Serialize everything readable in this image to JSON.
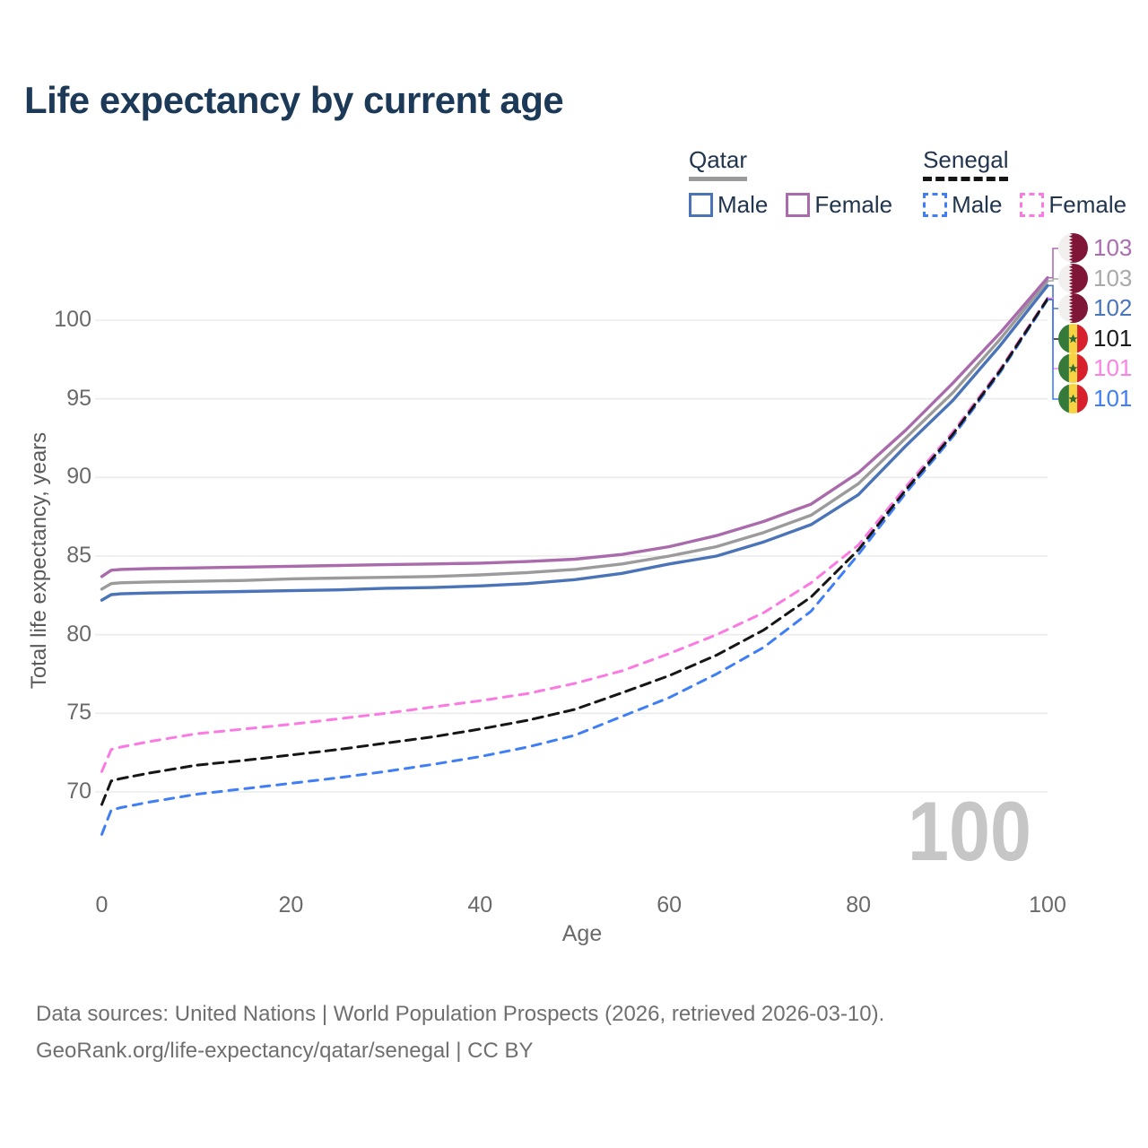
{
  "title": "Life expectancy by current age",
  "legend": {
    "qatar": {
      "title": "Qatar",
      "male_label": "Male",
      "female_label": "Female"
    },
    "senegal": {
      "title": "Senegal",
      "male_label": "Male",
      "female_label": "Female"
    }
  },
  "watermark": "100",
  "chart_data": {
    "type": "line",
    "title": "Life expectancy by current age",
    "xlabel": "Age",
    "ylabel": "Total life expectancy, years",
    "xlim": [
      0,
      100
    ],
    "ylim": [
      67,
      103.5
    ],
    "x_ticks": [
      0,
      20,
      40,
      60,
      80,
      100
    ],
    "y_ticks": [
      70,
      75,
      80,
      85,
      90,
      95,
      100
    ],
    "grid": "horizontal-only",
    "legend_position": "top-right",
    "x": [
      0,
      1,
      2,
      5,
      10,
      15,
      20,
      25,
      30,
      35,
      40,
      45,
      50,
      55,
      60,
      65,
      70,
      75,
      80,
      85,
      90,
      95,
      100
    ],
    "series": [
      {
        "name": "Qatar Female",
        "country": "Qatar",
        "sex": "Female",
        "style": "solid",
        "color": "#a96bab",
        "end_label": "103",
        "end_label_color": "#ab6cb0",
        "flag": "qatar",
        "values": [
          83.7,
          84.1,
          84.15,
          84.2,
          84.25,
          84.3,
          84.35,
          84.4,
          84.45,
          84.5,
          84.55,
          84.65,
          84.8,
          85.1,
          85.6,
          86.3,
          87.2,
          88.3,
          90.3,
          93.0,
          96.0,
          99.2,
          102.7
        ]
      },
      {
        "name": "Qatar Both sexes",
        "country": "Qatar",
        "sex": "Both",
        "style": "solid",
        "color": "#9b9b9b",
        "end_label": "103",
        "end_label_color": "#a9a9a9",
        "flag": "qatar",
        "values": [
          82.9,
          83.25,
          83.3,
          83.35,
          83.4,
          83.45,
          83.55,
          83.6,
          83.65,
          83.7,
          83.8,
          83.95,
          84.15,
          84.5,
          85.0,
          85.6,
          86.5,
          87.6,
          89.6,
          92.5,
          95.4,
          98.8,
          102.5
        ]
      },
      {
        "name": "Qatar Male",
        "country": "Qatar",
        "sex": "Male",
        "style": "solid",
        "color": "#4a73b8",
        "end_label": "102",
        "end_label_color": "#4a74bb",
        "flag": "qatar",
        "values": [
          82.2,
          82.55,
          82.6,
          82.65,
          82.7,
          82.75,
          82.8,
          82.85,
          82.95,
          83.0,
          83.1,
          83.25,
          83.5,
          83.9,
          84.5,
          85.0,
          85.9,
          87.0,
          88.9,
          92.0,
          94.9,
          98.4,
          102.2
        ]
      },
      {
        "name": "Senegal Both sexes",
        "country": "Senegal",
        "sex": "Both",
        "style": "dashed",
        "color": "#161616",
        "end_label": "101",
        "end_label_color": "#1a1a1a",
        "flag": "senegal",
        "values": [
          69.2,
          70.7,
          70.85,
          71.2,
          71.7,
          72.0,
          72.35,
          72.7,
          73.1,
          73.5,
          74.0,
          74.55,
          75.25,
          76.3,
          77.4,
          78.7,
          80.3,
          82.4,
          85.4,
          89.2,
          92.75,
          96.8,
          101.35
        ]
      },
      {
        "name": "Senegal Female",
        "country": "Senegal",
        "sex": "Female",
        "style": "dashed",
        "color": "#fb7ae2",
        "end_label": "101",
        "end_label_color": "#fc82e6",
        "flag": "senegal",
        "values": [
          71.3,
          72.7,
          72.85,
          73.2,
          73.7,
          74.0,
          74.3,
          74.65,
          75.0,
          75.4,
          75.8,
          76.25,
          76.9,
          77.7,
          78.8,
          80.0,
          81.4,
          83.3,
          85.7,
          89.4,
          92.9,
          96.9,
          101.4
        ]
      },
      {
        "name": "Senegal Male",
        "country": "Senegal",
        "sex": "Male",
        "style": "dashed",
        "color": "#3f7ef5",
        "end_label": "101",
        "end_label_color": "#3f7ef5",
        "flag": "senegal",
        "values": [
          67.3,
          68.85,
          69.0,
          69.35,
          69.85,
          70.2,
          70.55,
          70.9,
          71.3,
          71.75,
          72.25,
          72.85,
          73.6,
          74.8,
          76.0,
          77.5,
          79.2,
          81.5,
          85.1,
          89.0,
          92.6,
          96.7,
          101.3
        ]
      }
    ]
  },
  "footer": {
    "line1": "Data sources: United Nations | World Population Prospects (2026, retrieved 2026-03-10).",
    "line2": "GeoRank.org/life-expectancy/qatar/senegal | CC BY"
  }
}
